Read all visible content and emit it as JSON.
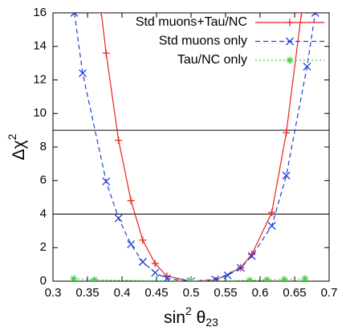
{
  "chart_data": {
    "type": "line",
    "xlabel": {
      "base": "sin",
      "sup": "2",
      "mid": " θ",
      "sub": "23"
    },
    "ylabel": {
      "base": "Δχ",
      "sup": "2"
    },
    "xlim": [
      0.3,
      0.7
    ],
    "xticks": [
      0.3,
      0.35,
      0.4,
      0.45,
      0.5,
      0.55,
      0.6,
      0.65,
      0.7
    ],
    "ylim": [
      0,
      16
    ],
    "yticks": [
      0,
      2,
      4,
      6,
      8,
      10,
      12,
      14,
      16
    ],
    "hlines": [
      4,
      9
    ],
    "legend": "top-right",
    "series": [
      {
        "name": "Std muons+Tau/NC",
        "color": "#e8221c",
        "dash": "none",
        "marker": "plus",
        "x": [
          0.37,
          0.377,
          0.395,
          0.413,
          0.43,
          0.448,
          0.465,
          0.5,
          0.535,
          0.572,
          0.588,
          0.617,
          0.638,
          0.66
        ],
        "values": [
          16,
          13.6,
          8.4,
          4.8,
          2.45,
          1.05,
          0.3,
          0,
          0.05,
          0.8,
          1.6,
          4.1,
          8.85,
          16
        ]
      },
      {
        "name": "Std muons only",
        "color": "#1c3fd8",
        "dash": "6,4",
        "marker": "cross",
        "x": [
          0.331,
          0.343,
          0.377,
          0.395,
          0.413,
          0.43,
          0.448,
          0.465,
          0.5,
          0.535,
          0.553,
          0.572,
          0.588,
          0.617,
          0.638,
          0.668,
          0.68
        ],
        "values": [
          16,
          12.4,
          5.95,
          3.75,
          2.2,
          1.15,
          0.5,
          0.15,
          0,
          0.1,
          0.35,
          0.8,
          1.5,
          3.3,
          6.3,
          12.8,
          16
        ]
      },
      {
        "name": "Tau/NC only",
        "color": "#3fcf3f",
        "dash": "2,3",
        "marker": "star",
        "x": [
          0.33,
          0.36,
          0.5,
          0.585,
          0.61,
          0.635,
          0.665
        ],
        "values": [
          0.15,
          0.08,
          0,
          0.05,
          0.08,
          0.1,
          0.15
        ]
      }
    ]
  }
}
